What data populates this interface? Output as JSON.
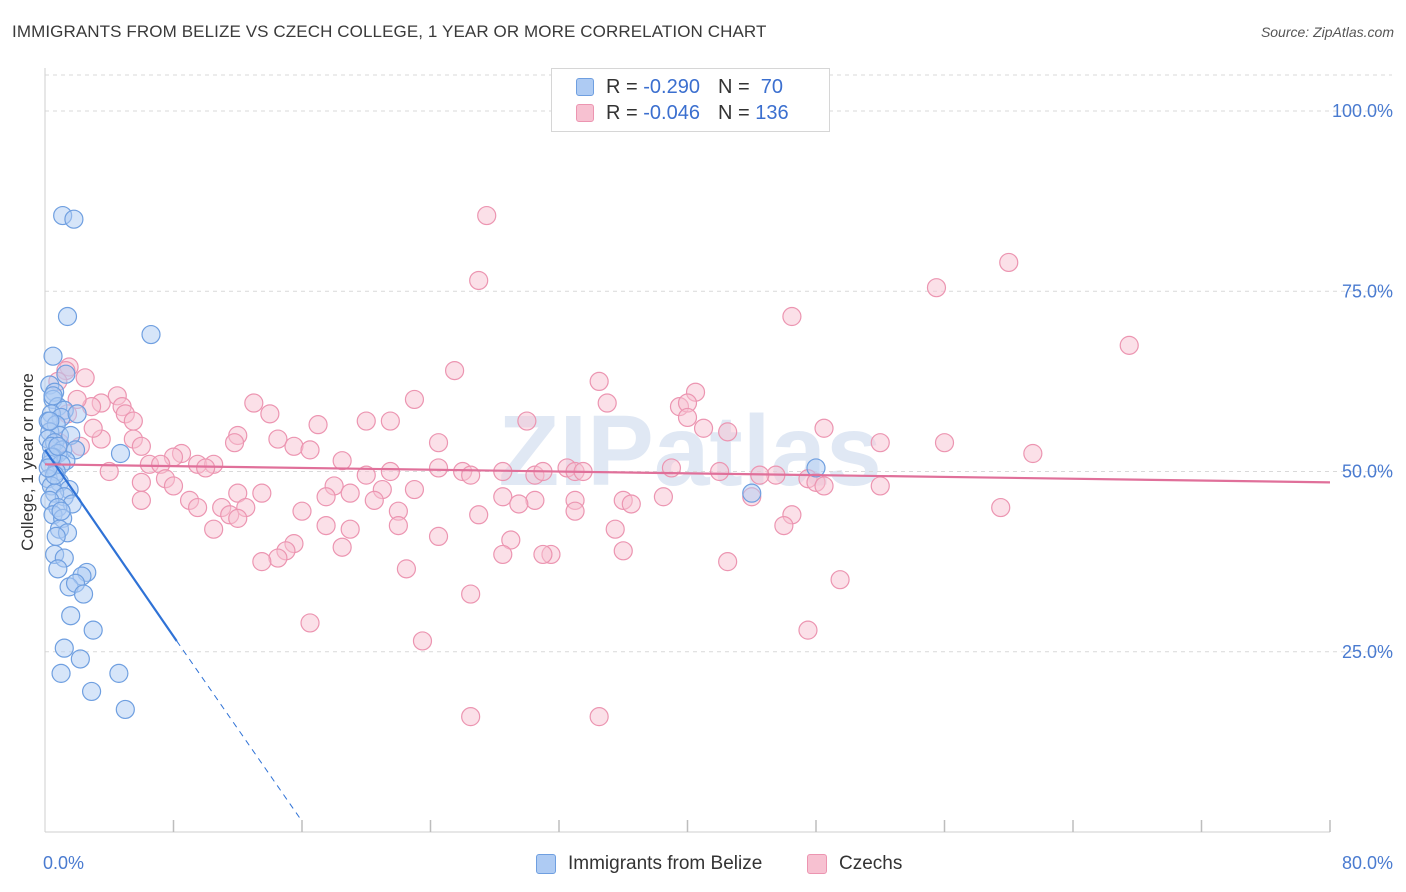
{
  "title": "IMMIGRANTS FROM BELIZE VS CZECH COLLEGE, 1 YEAR OR MORE CORRELATION CHART",
  "source": "Source: ZipAtlas.com",
  "watermark": "ZIPatlas",
  "legend": {
    "rows": [
      {
        "r_label": "R =",
        "r_value": "-0.290",
        "n_label": "N =",
        "n_value": "70"
      },
      {
        "r_label": "R =",
        "r_value": "-0.046",
        "n_label": "N =",
        "n_value": "136"
      }
    ]
  },
  "bottom_legend": [
    "Immigrants from Belize",
    "Czechs"
  ],
  "colors": {
    "belize_fill": "#aecbf3",
    "belize_stroke": "#6f9fe0",
    "belize_line": "#2f72d6",
    "czech_fill": "#f7c1d1",
    "czech_stroke": "#ec95b1",
    "czech_line": "#e0709a",
    "tick_text": "#4a7bd0",
    "grid": "#d9d9d9"
  },
  "chart_data": {
    "type": "scatter",
    "title": "IMMIGRANTS FROM BELIZE VS CZECH COLLEGE, 1 YEAR OR MORE CORRELATION CHART",
    "xlabel": "",
    "ylabel": "College, 1 year or more",
    "xlim": [
      0,
      80
    ],
    "ylim": [
      0,
      105
    ],
    "x_tick_labels": [
      {
        "value": 0,
        "label": "0.0%"
      },
      {
        "value": 80,
        "label": "80.0%"
      }
    ],
    "y_tick_labels": [
      {
        "value": 25,
        "label": "25.0%"
      },
      {
        "value": 50,
        "label": "50.0%"
      },
      {
        "value": 75,
        "label": "75.0%"
      },
      {
        "value": 100,
        "label": "100.0%"
      }
    ],
    "x_minor_ticks": [
      8,
      16,
      24,
      32,
      40,
      48,
      56,
      64,
      72,
      80
    ],
    "series": [
      {
        "name": "Immigrants from Belize",
        "R": -0.29,
        "N": 70,
        "trend": {
          "x0": 0,
          "y0": 53.0,
          "x1": 8.2,
          "y1": 26.5,
          "dash_to_x": 16,
          "dash_to_y": 1.5
        },
        "points": [
          [
            1.1,
            85.5
          ],
          [
            1.8,
            85.0
          ],
          [
            1.4,
            71.5
          ],
          [
            6.6,
            69.0
          ],
          [
            0.5,
            66.0
          ],
          [
            0.3,
            62.0
          ],
          [
            0.6,
            61.0
          ],
          [
            0.5,
            60.0
          ],
          [
            0.8,
            59.0
          ],
          [
            1.2,
            58.5
          ],
          [
            0.4,
            58.0
          ],
          [
            1.0,
            57.5
          ],
          [
            2.0,
            58.0
          ],
          [
            0.2,
            57.0
          ],
          [
            0.7,
            56.5
          ],
          [
            0.3,
            55.5
          ],
          [
            0.9,
            55.0
          ],
          [
            1.6,
            55.0
          ],
          [
            0.2,
            54.5
          ],
          [
            0.6,
            54.0
          ],
          [
            0.4,
            53.5
          ],
          [
            1.1,
            53.0
          ],
          [
            1.9,
            53.0
          ],
          [
            0.8,
            52.5
          ],
          [
            4.7,
            52.5
          ],
          [
            0.5,
            52.0
          ],
          [
            1.3,
            51.5
          ],
          [
            0.3,
            51.0
          ],
          [
            1.0,
            51.0
          ],
          [
            0.7,
            50.0
          ],
          [
            0.2,
            49.0
          ],
          [
            0.9,
            48.5
          ],
          [
            0.4,
            48.0
          ],
          [
            1.5,
            47.5
          ],
          [
            0.6,
            47.0
          ],
          [
            1.2,
            46.5
          ],
          [
            0.3,
            46.0
          ],
          [
            1.7,
            45.5
          ],
          [
            0.8,
            45.0
          ],
          [
            0.5,
            44.0
          ],
          [
            1.1,
            43.5
          ],
          [
            0.9,
            42.0
          ],
          [
            1.4,
            41.5
          ],
          [
            0.7,
            41.0
          ],
          [
            0.6,
            38.5
          ],
          [
            1.2,
            38.0
          ],
          [
            0.8,
            36.5
          ],
          [
            2.6,
            36.0
          ],
          [
            2.3,
            35.5
          ],
          [
            1.5,
            34.0
          ],
          [
            1.9,
            34.5
          ],
          [
            2.4,
            33.0
          ],
          [
            1.6,
            30.0
          ],
          [
            3.0,
            28.0
          ],
          [
            1.2,
            25.5
          ],
          [
            2.2,
            24.0
          ],
          [
            1.0,
            22.0
          ],
          [
            4.6,
            22.0
          ],
          [
            2.9,
            19.5
          ],
          [
            5.0,
            17.0
          ],
          [
            44.0,
            47.0
          ],
          [
            48.0,
            50.5
          ],
          [
            0.3,
            57.0
          ],
          [
            0.5,
            60.5
          ],
          [
            1.3,
            63.5
          ],
          [
            0.4,
            52.0
          ],
          [
            0.6,
            49.5
          ],
          [
            1.0,
            44.5
          ],
          [
            0.2,
            50.5
          ],
          [
            0.8,
            53.5
          ]
        ]
      },
      {
        "name": "Czechs",
        "R": -0.046,
        "N": 136,
        "trend": {
          "x0": 0,
          "y0": 51.0,
          "x1": 80,
          "y1": 48.5
        },
        "points": [
          [
            27.5,
            85.5
          ],
          [
            27.0,
            76.5
          ],
          [
            60.0,
            79.0
          ],
          [
            55.5,
            75.5
          ],
          [
            46.5,
            71.5
          ],
          [
            67.5,
            67.5
          ],
          [
            1.5,
            64.5
          ],
          [
            1.3,
            64.0
          ],
          [
            25.5,
            64.0
          ],
          [
            2.5,
            63.0
          ],
          [
            34.5,
            62.5
          ],
          [
            0.8,
            62.5
          ],
          [
            4.5,
            60.5
          ],
          [
            40.5,
            61.0
          ],
          [
            3.5,
            59.5
          ],
          [
            13.0,
            59.5
          ],
          [
            23.0,
            60.0
          ],
          [
            35.0,
            59.5
          ],
          [
            4.8,
            59.0
          ],
          [
            39.5,
            59.0
          ],
          [
            14.0,
            58.0
          ],
          [
            40.0,
            59.5
          ],
          [
            2.9,
            59.0
          ],
          [
            5.0,
            58.0
          ],
          [
            5.5,
            57.0
          ],
          [
            17.0,
            56.5
          ],
          [
            20.0,
            57.0
          ],
          [
            21.5,
            57.0
          ],
          [
            30.0,
            57.0
          ],
          [
            40.0,
            57.5
          ],
          [
            48.5,
            56.0
          ],
          [
            42.5,
            55.5
          ],
          [
            12.0,
            55.0
          ],
          [
            14.5,
            54.5
          ],
          [
            5.5,
            54.5
          ],
          [
            11.8,
            54.0
          ],
          [
            52.0,
            54.0
          ],
          [
            56.0,
            54.0
          ],
          [
            15.5,
            53.5
          ],
          [
            16.5,
            53.0
          ],
          [
            3.5,
            54.5
          ],
          [
            6.0,
            53.5
          ],
          [
            24.5,
            54.0
          ],
          [
            8.5,
            52.5
          ],
          [
            8.0,
            52.0
          ],
          [
            61.5,
            52.5
          ],
          [
            6.5,
            51.0
          ],
          [
            7.2,
            51.0
          ],
          [
            9.5,
            51.0
          ],
          [
            10.5,
            51.0
          ],
          [
            10.0,
            50.5
          ],
          [
            21.5,
            50.0
          ],
          [
            32.5,
            50.5
          ],
          [
            24.5,
            50.5
          ],
          [
            28.5,
            50.0
          ],
          [
            26.0,
            50.0
          ],
          [
            33.0,
            50.0
          ],
          [
            20.0,
            49.5
          ],
          [
            26.5,
            49.5
          ],
          [
            30.5,
            49.5
          ],
          [
            33.5,
            50.0
          ],
          [
            42.0,
            50.0
          ],
          [
            45.5,
            49.5
          ],
          [
            47.5,
            49.0
          ],
          [
            48.0,
            48.5
          ],
          [
            48.5,
            48.0
          ],
          [
            7.5,
            49.0
          ],
          [
            6.0,
            48.5
          ],
          [
            8.0,
            48.0
          ],
          [
            18.0,
            48.0
          ],
          [
            21.0,
            47.5
          ],
          [
            23.0,
            47.5
          ],
          [
            13.5,
            47.0
          ],
          [
            19.0,
            47.0
          ],
          [
            12.0,
            47.0
          ],
          [
            17.5,
            46.5
          ],
          [
            20.5,
            46.0
          ],
          [
            28.5,
            46.5
          ],
          [
            30.5,
            46.0
          ],
          [
            33.0,
            46.0
          ],
          [
            36.0,
            46.0
          ],
          [
            44.0,
            46.5
          ],
          [
            6.0,
            46.0
          ],
          [
            9.0,
            46.0
          ],
          [
            11.0,
            45.0
          ],
          [
            9.5,
            45.0
          ],
          [
            12.5,
            45.0
          ],
          [
            16.0,
            44.5
          ],
          [
            22.0,
            44.5
          ],
          [
            29.5,
            45.5
          ],
          [
            33.0,
            44.5
          ],
          [
            36.5,
            45.5
          ],
          [
            46.5,
            44.0
          ],
          [
            59.5,
            45.0
          ],
          [
            11.5,
            44.0
          ],
          [
            12.0,
            43.5
          ],
          [
            10.5,
            42.0
          ],
          [
            17.5,
            42.5
          ],
          [
            19.0,
            42.0
          ],
          [
            22.0,
            42.5
          ],
          [
            35.5,
            42.0
          ],
          [
            46.0,
            42.5
          ],
          [
            24.5,
            41.0
          ],
          [
            18.5,
            39.5
          ],
          [
            15.5,
            40.0
          ],
          [
            29.0,
            40.5
          ],
          [
            15.0,
            39.0
          ],
          [
            31.5,
            38.5
          ],
          [
            31.0,
            38.5
          ],
          [
            36.0,
            39.0
          ],
          [
            28.5,
            38.5
          ],
          [
            14.5,
            38.0
          ],
          [
            13.5,
            37.5
          ],
          [
            42.5,
            37.5
          ],
          [
            22.5,
            36.5
          ],
          [
            49.5,
            35.0
          ],
          [
            26.5,
            33.0
          ],
          [
            16.5,
            29.0
          ],
          [
            47.5,
            28.0
          ],
          [
            23.5,
            26.5
          ],
          [
            26.5,
            16.0
          ],
          [
            34.5,
            16.0
          ],
          [
            1.4,
            58.0
          ],
          [
            2.0,
            60.0
          ],
          [
            0.9,
            54.0
          ],
          [
            3.0,
            56.0
          ],
          [
            2.2,
            53.5
          ],
          [
            18.5,
            51.5
          ],
          [
            38.5,
            46.5
          ],
          [
            52.0,
            48.0
          ],
          [
            44.5,
            49.5
          ],
          [
            31.0,
            50.0
          ],
          [
            4.0,
            50.0
          ],
          [
            27.0,
            44.0
          ],
          [
            41.0,
            56.0
          ],
          [
            39.0,
            50.5
          ]
        ]
      }
    ]
  }
}
